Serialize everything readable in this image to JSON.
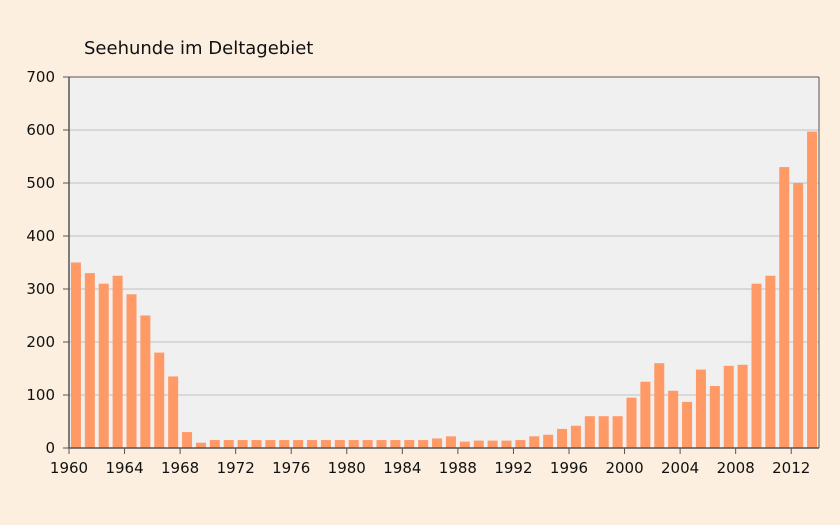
{
  "chart_data": {
    "type": "bar",
    "title": "Seehunde im Deltagebiet",
    "xlabel": "",
    "ylabel": "",
    "ylim": [
      0,
      700
    ],
    "yticks": [
      0,
      100,
      200,
      300,
      400,
      500,
      600,
      700
    ],
    "xtick_labels": [
      "1960",
      "1964",
      "1968",
      "1972",
      "1976",
      "1980",
      "1984",
      "1988",
      "1992",
      "1996",
      "2000",
      "2004",
      "2008",
      "2012"
    ],
    "grid": true,
    "legend": "none",
    "colors": {
      "bar": "#ff9966",
      "plot_background": "#f0f0f0",
      "page_background": "#fcefdf",
      "gridline": "#bfbfbf",
      "axis": "#555555"
    },
    "x": [
      1960,
      1961,
      1962,
      1963,
      1964,
      1965,
      1966,
      1967,
      1968,
      1969,
      1970,
      1971,
      1972,
      1973,
      1974,
      1975,
      1976,
      1977,
      1978,
      1979,
      1980,
      1981,
      1982,
      1983,
      1984,
      1985,
      1986,
      1987,
      1988,
      1989,
      1990,
      1991,
      1992,
      1993,
      1994,
      1995,
      1996,
      1997,
      1998,
      1999,
      2000,
      2001,
      2002,
      2003,
      2004,
      2005,
      2006,
      2007,
      2008,
      2009,
      2010,
      2011,
      2012,
      2013
    ],
    "values": [
      350,
      330,
      310,
      325,
      290,
      250,
      180,
      135,
      30,
      10,
      15,
      15,
      15,
      15,
      15,
      15,
      15,
      15,
      15,
      15,
      15,
      15,
      15,
      15,
      15,
      15,
      18,
      22,
      12,
      14,
      14,
      14,
      15,
      22,
      25,
      36,
      42,
      60,
      60,
      60,
      95,
      125,
      160,
      108,
      87,
      148,
      117,
      155,
      157,
      310,
      325,
      530,
      500,
      597
    ]
  }
}
